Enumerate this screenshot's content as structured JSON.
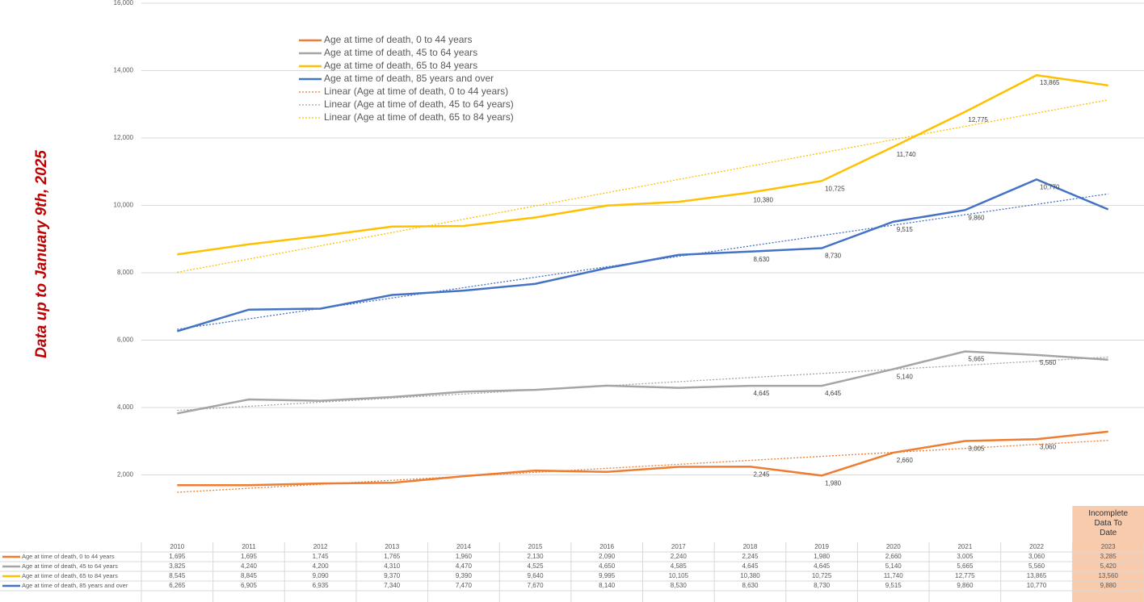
{
  "chart_data": {
    "type": "line",
    "side_note": "Data up to January 9th, 2025",
    "column_note": "Incomplete Data To Date",
    "categories": [
      "2010",
      "2011",
      "2012",
      "2013",
      "2014",
      "2015",
      "2016",
      "2017",
      "2018",
      "2019",
      "2020",
      "2021",
      "2022",
      "2023"
    ],
    "ylim": [
      0,
      16000
    ],
    "yticks": [
      {
        "value": 2000,
        "label": "2,000"
      },
      {
        "value": 4000,
        "label": "4,000"
      },
      {
        "value": 6000,
        "label": "6,000"
      },
      {
        "value": 8000,
        "label": "8,000"
      },
      {
        "value": 10000,
        "label": "10,000"
      },
      {
        "value": 12000,
        "label": "12,000"
      },
      {
        "value": 14000,
        "label": "14,000"
      },
      {
        "value": 16000,
        "label": "16,000"
      }
    ],
    "grid": true,
    "series": [
      {
        "name": "Age at time of death, 0 to 44 years",
        "color": "#ed7d31",
        "trendline": "Linear (Age at time of death, 0 to 44 years)",
        "values": [
          1695,
          1695,
          1745,
          1765,
          1960,
          2130,
          2090,
          2240,
          2245,
          1980,
          2660,
          3005,
          3060,
          3285
        ],
        "value_labels": [
          "1,695",
          "1,695",
          "1,745",
          "1,765",
          "1,960",
          "2,130",
          "2,090",
          "2,240",
          "2,245",
          "1,980",
          "2,660",
          "3,005",
          "3,060",
          "3,285"
        ]
      },
      {
        "name": "Age at time of death, 45 to 64 years",
        "color": "#a5a5a5",
        "trendline": "Linear (Age at time of death, 45 to 64 years)",
        "values": [
          3825,
          4240,
          4200,
          4310,
          4470,
          4525,
          4650,
          4585,
          4645,
          4645,
          5140,
          5665,
          5560,
          5420
        ],
        "value_labels": [
          "3,825",
          "4,240",
          "4,200",
          "4,310",
          "4,470",
          "4,525",
          "4,650",
          "4,585",
          "4,645",
          "4,645",
          "5,140",
          "5,665",
          "5,560",
          "5,420"
        ]
      },
      {
        "name": "Age at time of death, 65 to 84 years",
        "color": "#ffc000",
        "trendline": "Linear (Age at time of death, 65 to 84 years)",
        "values": [
          8545,
          8845,
          9090,
          9370,
          9390,
          9640,
          9995,
          10105,
          10380,
          10725,
          11740,
          12775,
          13865,
          13560
        ],
        "value_labels": [
          "8,545",
          "8,845",
          "9,090",
          "9,370",
          "9,390",
          "9,640",
          "9,995",
          "10,105",
          "10,380",
          "10,725",
          "11,740",
          "12,775",
          "13,865",
          "13,560"
        ]
      },
      {
        "name": "Age at time of death, 85 years and over",
        "color": "#4472c4",
        "values": [
          6265,
          6905,
          6935,
          7340,
          7470,
          7670,
          8140,
          8530,
          8630,
          8730,
          9515,
          9860,
          10770,
          9880
        ],
        "value_labels": [
          "6,265",
          "6,905",
          "6,935",
          "7,340",
          "7,470",
          "7,670",
          "8,140",
          "8,530",
          "8,630",
          "8,730",
          "9,515",
          "9,860",
          "10,770",
          "9,880"
        ]
      }
    ]
  }
}
